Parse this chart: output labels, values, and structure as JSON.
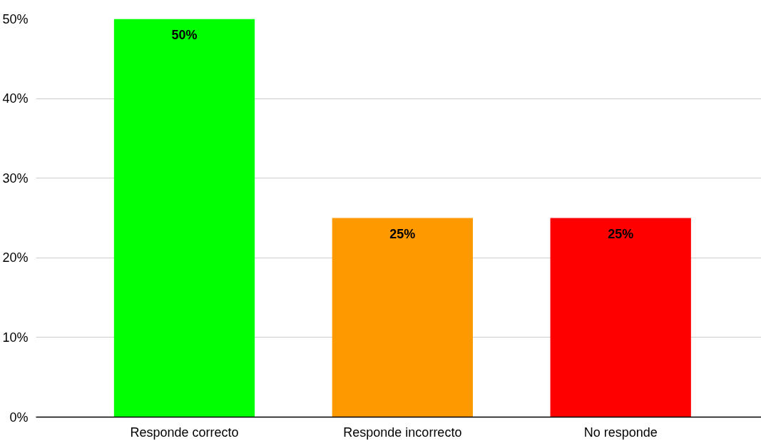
{
  "chart_data": {
    "type": "bar",
    "categories": [
      "Responde correcto",
      "Responde incorrecto",
      "No responde"
    ],
    "values": [
      50,
      25,
      25
    ],
    "colors": [
      "#00ff00",
      "#ff9900",
      "#ff0000"
    ],
    "value_labels": [
      "50%",
      "25%",
      "25%"
    ],
    "ylim": [
      0,
      50
    ],
    "yticks": [
      {
        "value": 0,
        "label": "0%"
      },
      {
        "value": 10,
        "label": "10%"
      },
      {
        "value": 20,
        "label": "20%"
      },
      {
        "value": 30,
        "label": "30%"
      },
      {
        "value": 40,
        "label": "40%"
      },
      {
        "value": 50,
        "label": "50%"
      }
    ],
    "grid": "y"
  }
}
